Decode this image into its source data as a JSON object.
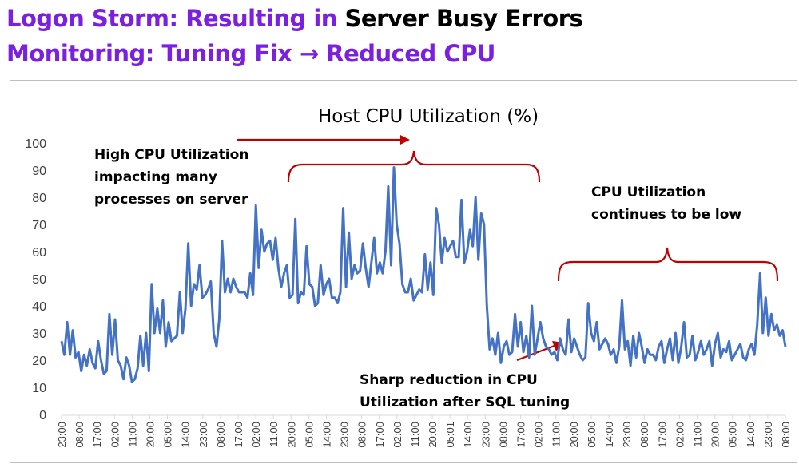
{
  "heading": {
    "line1_purple": "Logon Storm: Resulting in ",
    "line1_black": "Server Busy Errors",
    "line2_purple": "Monitoring: Tuning Fix → Reduced CPU"
  },
  "colors": {
    "heading_accent": "#7B1FE0",
    "line": "#4472C4",
    "annotation": "#C00000"
  },
  "chart_data": {
    "type": "line",
    "title": "Host CPU Utilization (%)",
    "xlabel": "",
    "ylabel": "",
    "ylim": [
      0,
      100
    ],
    "yticks": [
      0,
      10,
      20,
      30,
      40,
      50,
      60,
      70,
      80,
      90,
      100
    ],
    "grid": false,
    "x_tick_labels": [
      "23:00",
      "08:00",
      "17:00",
      "02:00",
      "11:00",
      "20:00",
      "05:00",
      "14:00",
      "23:00",
      "08:00",
      "17:00",
      "02:00",
      "11:00",
      "20:00",
      "05:00",
      "14:00",
      "23:00",
      "08:00",
      "17:00",
      "02:00",
      "11:00",
      "20:00",
      "05:01",
      "14:00",
      "23:00",
      "08:00",
      "17:00",
      "02:00",
      "11:00",
      "20:00",
      "05:00",
      "14:00",
      "23:00",
      "08:00",
      "17:00",
      "02:00",
      "11:00",
      "20:00",
      "05:00",
      "14:00",
      "23:00",
      "08:00"
    ],
    "series": [
      {
        "values": [
          27,
          22,
          34,
          22,
          31,
          21,
          23,
          16,
          22,
          18,
          24,
          19,
          17,
          27,
          20,
          15,
          16,
          37,
          22,
          35,
          20,
          18,
          13,
          21,
          18,
          12,
          13,
          17,
          29,
          18,
          30,
          16,
          48,
          30,
          39,
          30,
          42,
          25,
          34,
          27,
          28,
          29,
          45,
          30,
          39,
          63,
          40,
          48,
          46,
          55,
          43,
          44,
          46,
          49,
          30,
          25,
          35,
          64,
          45,
          50,
          45,
          50,
          47,
          45,
          45,
          45,
          43,
          52,
          44,
          77,
          54,
          68,
          60,
          63,
          64,
          57,
          65,
          54,
          47,
          52,
          55,
          43,
          44,
          72,
          41,
          45,
          44,
          62,
          48,
          47,
          40,
          41,
          55,
          44,
          48,
          50,
          43,
          43,
          41,
          45,
          76,
          47,
          67,
          50,
          55,
          52,
          53,
          63,
          54,
          47,
          56,
          65,
          52,
          56,
          52,
          60,
          84,
          55,
          91,
          70,
          63,
          48,
          45,
          45,
          50,
          42,
          44,
          46,
          45,
          59,
          46,
          56,
          44,
          76,
          70,
          56,
          65,
          60,
          62,
          64,
          58,
          58,
          79,
          56,
          60,
          68,
          62,
          80,
          57,
          74,
          70,
          40,
          24,
          28,
          22,
          30,
          19,
          25,
          27,
          22,
          23,
          37,
          25,
          34,
          23,
          29,
          21,
          40,
          22,
          28,
          34,
          28,
          25,
          24,
          22,
          23,
          20,
          28,
          24,
          22,
          35,
          23,
          28,
          25,
          22,
          20,
          21,
          41,
          30,
          27,
          34,
          24,
          26,
          28,
          26,
          22,
          24,
          19,
          25,
          42,
          24,
          27,
          18,
          29,
          21,
          30,
          25,
          19,
          24,
          22,
          22,
          20,
          25,
          27,
          19,
          24,
          28,
          20,
          30,
          19,
          25,
          34,
          21,
          22,
          29,
          20,
          23,
          27,
          22,
          24,
          27,
          18,
          26,
          30,
          21,
          24,
          23,
          27,
          20,
          22,
          24,
          26,
          21,
          20,
          24,
          26,
          22,
          33,
          52,
          30,
          43,
          29,
          37,
          31,
          33,
          29,
          31,
          25
        ]
      }
    ],
    "annotations": [
      {
        "text": [
          "High CPU Utilization",
          "impacting many",
          "processes on server"
        ]
      },
      {
        "text": [
          "CPU Utilization",
          "continues to be low"
        ]
      },
      {
        "text": [
          "Sharp reduction in CPU",
          "Utilization after SQL tuning"
        ]
      }
    ]
  }
}
